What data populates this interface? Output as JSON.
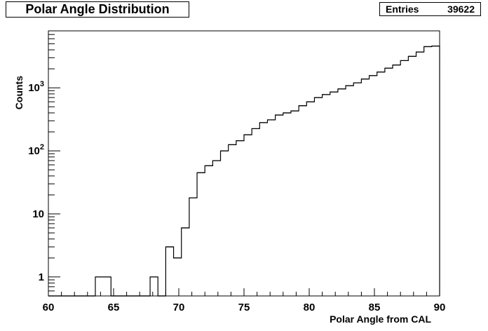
{
  "title": "Polar Angle Distribution",
  "stats": {
    "label": "Entries",
    "value": "39622"
  },
  "chart_data": {
    "type": "histogram",
    "title": "Polar Angle Distribution",
    "xlabel": "Polar Angle from CAL",
    "ylabel": "Counts",
    "xlim": [
      60,
      90
    ],
    "ylim": [
      0.5,
      8000
    ],
    "y_scale": "log",
    "entries": 39622,
    "x_ticks": [
      60,
      65,
      70,
      75,
      80,
      85,
      90
    ],
    "x_tick_labels": [
      "60",
      "65",
      "70",
      "75",
      "80",
      "85",
      "90"
    ],
    "y_ticks": [
      1,
      10,
      100,
      1000
    ],
    "y_tick_labels": [
      {
        "base": "1",
        "exp": ""
      },
      {
        "base": "10",
        "exp": ""
      },
      {
        "base": "10",
        "exp": "2"
      },
      {
        "base": "10",
        "exp": "3"
      }
    ],
    "bin_edges": [
      60.0,
      60.6,
      61.2,
      61.8,
      62.4,
      63.0,
      63.6,
      64.2,
      64.8,
      65.4,
      66.0,
      66.6,
      67.2,
      67.8,
      68.4,
      69.0,
      69.6,
      70.2,
      70.8,
      71.4,
      72.0,
      72.6,
      73.2,
      73.8,
      74.4,
      75.0,
      75.6,
      76.2,
      76.8,
      77.4,
      78.0,
      78.6,
      79.2,
      79.8,
      80.4,
      81.0,
      81.6,
      82.2,
      82.8,
      83.4,
      84.0,
      84.6,
      85.2,
      85.8,
      86.4,
      87.0,
      87.6,
      88.2,
      88.8,
      89.4,
      90.0
    ],
    "counts": [
      0,
      0,
      0,
      0,
      0,
      0,
      1,
      1,
      0,
      0,
      0,
      0,
      0,
      1,
      0,
      3,
      2,
      6,
      18,
      45,
      58,
      70,
      100,
      125,
      145,
      180,
      225,
      280,
      310,
      370,
      400,
      430,
      520,
      600,
      700,
      780,
      860,
      960,
      1080,
      1200,
      1380,
      1560,
      1780,
      2050,
      2300,
      2700,
      3150,
      3700,
      4500,
      4600
    ]
  }
}
